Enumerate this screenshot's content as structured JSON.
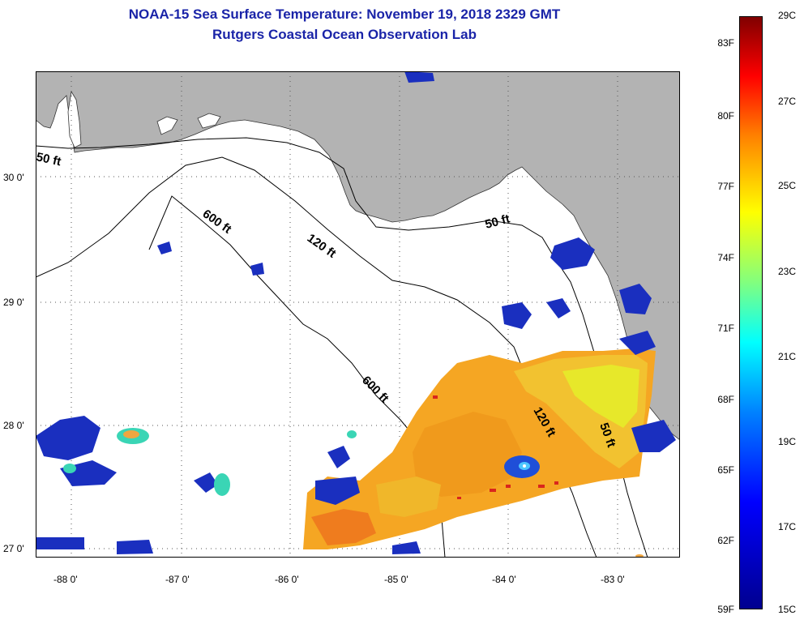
{
  "title": {
    "line1": "NOAA-15 Sea Surface Temperature:  November 19, 2018 2329 GMT",
    "line2": "Rutgers Coastal Ocean Observation Lab"
  },
  "colors": {
    "title": "#1a24a8",
    "land": "#b3b3b3",
    "water_no_data": "#ffffff"
  },
  "lat_labels": [
    "30 0'",
    "29 0'",
    "28 0'",
    "27 0'"
  ],
  "lon_labels": [
    "-88 0'",
    "-87 0'",
    "-86 0'",
    "-85 0'",
    "-84 0'",
    "-83 0'"
  ],
  "contour_labels": {
    "c50_west": "50 ft",
    "c600_north": "600 ft",
    "c120_north": "120 ft",
    "c50_east": "50 ft",
    "c600_south": "600 ft",
    "c120_south": "120 ft",
    "c50_south": "50 ft"
  },
  "colorbar": {
    "f_labels": [
      "83F",
      "80F",
      "77F",
      "74F",
      "71F",
      "68F",
      "65F",
      "62F",
      "59F"
    ],
    "c_labels": [
      "29C",
      "27C",
      "25C",
      "23C",
      "21C",
      "19C",
      "17C",
      "15C"
    ]
  }
}
